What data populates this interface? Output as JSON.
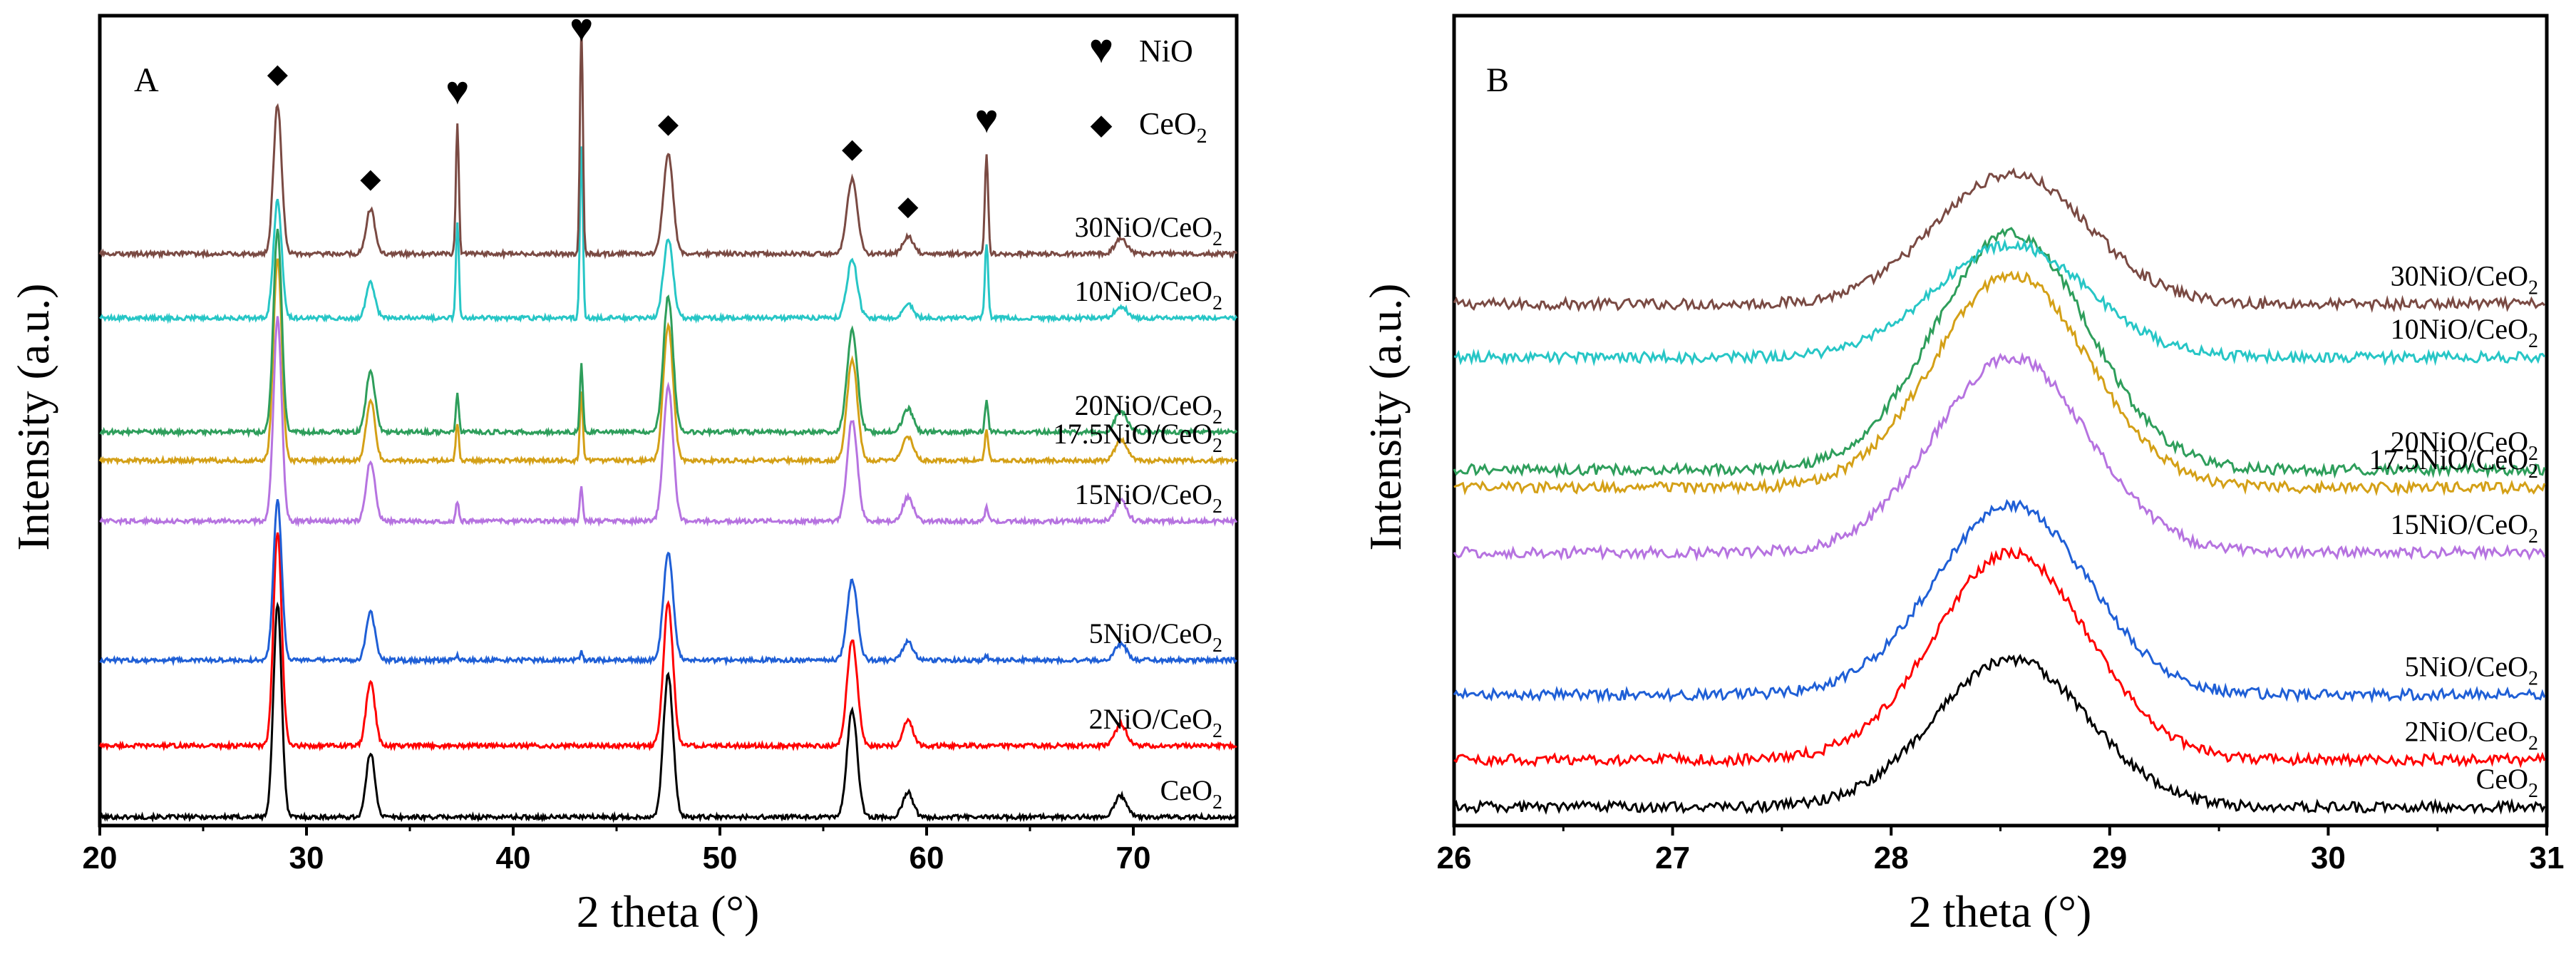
{
  "chart_data": [
    {
      "panel": "A",
      "type": "line",
      "xlabel": "2 theta (°)",
      "ylabel": "Intensity (a.u.)",
      "xlim": [
        20,
        75
      ],
      "xticks": [
        "20",
        "30",
        "40",
        "50",
        "60",
        "70"
      ],
      "legend": [
        {
          "marker": "heart",
          "glyph": "♥",
          "label": "NiO"
        },
        {
          "marker": "diamond",
          "glyph": "◆",
          "label": "CeO2"
        }
      ],
      "series": [
        {
          "name": "CeO2",
          "label_main": "CeO",
          "label_sub": "2",
          "color": "#000000",
          "baseline": 0.0,
          "nio_scale": 0.0,
          "ceo2_scale": 1.0
        },
        {
          "name": "2NiO/CeO2",
          "label_main": "2NiO/CeO",
          "label_sub": "2",
          "color": "#ff0000",
          "baseline": 1.0,
          "nio_scale": 0.0,
          "ceo2_scale": 1.0
        },
        {
          "name": "5NiO/CeO2",
          "label_main": "5NiO/CeO",
          "label_sub": "2",
          "color": "#1f5fd6",
          "baseline": 2.2,
          "nio_scale": 0.04,
          "ceo2_scale": 0.75
        },
        {
          "name": "15NiO/CeO2",
          "label_main": "15NiO/CeO",
          "label_sub": "2",
          "color": "#b673e0",
          "baseline": 4.15,
          "nio_scale": 0.15,
          "ceo2_scale": 0.95
        },
        {
          "name": "17.5NiO/CeO2",
          "label_main": "17.5NiO/CeO",
          "label_sub": "2",
          "color": "#d4a017",
          "baseline": 5.0,
          "nio_scale": 0.3,
          "ceo2_scale": 0.95
        },
        {
          "name": "20NiO/CeO2",
          "label_main": "20NiO/CeO",
          "label_sub": "2",
          "color": "#2e9e5b",
          "baseline": 5.4,
          "nio_scale": 0.3,
          "ceo2_scale": 0.95
        },
        {
          "name": "10NiO/CeO2",
          "label_main": "10NiO/CeO",
          "label_sub": "2",
          "color": "#27c6c6",
          "baseline": 7.0,
          "nio_scale": 0.75,
          "ceo2_scale": 0.55
        },
        {
          "name": "30NiO/CeO2",
          "label_main": "30NiO/CeO",
          "label_sub": "2",
          "color": "#7a4a43",
          "baseline": 7.9,
          "nio_scale": 1.0,
          "ceo2_scale": 0.7
        }
      ],
      "ceo2_peaks": [
        {
          "x": 28.6,
          "h": 3.0,
          "w": 0.28
        },
        {
          "x": 33.1,
          "h": 0.9,
          "w": 0.3
        },
        {
          "x": 47.5,
          "h": 2.0,
          "w": 0.33
        },
        {
          "x": 56.4,
          "h": 1.5,
          "w": 0.35
        },
        {
          "x": 59.1,
          "h": 0.35,
          "w": 0.35
        },
        {
          "x": 69.4,
          "h": 0.3,
          "w": 0.4
        }
      ],
      "nio_peaks": [
        {
          "x": 37.3,
          "h": 1.8,
          "w": 0.1
        },
        {
          "x": 43.3,
          "h": 3.2,
          "w": 0.1
        },
        {
          "x": 62.9,
          "h": 1.4,
          "w": 0.11
        }
      ],
      "markers": [
        {
          "type": "diamond",
          "glyph": "◆",
          "x": 28.6
        },
        {
          "type": "diamond",
          "glyph": "◆",
          "x": 33.1
        },
        {
          "type": "heart",
          "glyph": "♥",
          "x": 37.3
        },
        {
          "type": "heart",
          "glyph": "♥",
          "x": 43.3
        },
        {
          "type": "diamond",
          "glyph": "◆",
          "x": 47.5
        },
        {
          "type": "diamond",
          "glyph": "◆",
          "x": 56.4
        },
        {
          "type": "diamond",
          "glyph": "◆",
          "x": 59.1
        },
        {
          "type": "heart",
          "glyph": "♥",
          "x": 62.9
        }
      ]
    },
    {
      "panel": "B",
      "type": "line",
      "xlabel": "2 theta (°)",
      "ylabel": "Intensity (a.u.)",
      "xlim": [
        26,
        31
      ],
      "xticks": [
        "26",
        "27",
        "28",
        "29",
        "30",
        "31"
      ],
      "peak": {
        "center": 28.55,
        "sigma": 0.35
      },
      "series": [
        {
          "name": "CeO2",
          "label_main": "CeO",
          "label_sub": "2",
          "color": "#000000",
          "baseline": 0.0,
          "height": 2.5
        },
        {
          "name": "2NiO/CeO2",
          "label_main": "2NiO/CeO",
          "label_sub": "2",
          "color": "#ff0000",
          "baseline": 0.8,
          "height": 3.5
        },
        {
          "name": "5NiO/CeO2",
          "label_main": "5NiO/CeO",
          "label_sub": "2",
          "color": "#1f5fd6",
          "baseline": 1.9,
          "height": 3.2
        },
        {
          "name": "15NiO/CeO2",
          "label_main": "15NiO/CeO",
          "label_sub": "2",
          "color": "#b673e0",
          "baseline": 4.3,
          "height": 3.3
        },
        {
          "name": "17.5NiO/CeO2",
          "label_main": "17.5NiO/CeO",
          "label_sub": "2",
          "color": "#d4a017",
          "baseline": 5.4,
          "height": 3.6
        },
        {
          "name": "20NiO/CeO2",
          "label_main": "20NiO/CeO",
          "label_sub": "2",
          "color": "#2e9e5b",
          "baseline": 5.7,
          "height": 4.0
        },
        {
          "name": "10NiO/CeO2",
          "label_main": "10NiO/CeO",
          "label_sub": "2",
          "color": "#27c6c6",
          "baseline": 7.6,
          "height": 1.9
        },
        {
          "name": "30NiO/CeO2",
          "label_main": "30NiO/CeO",
          "label_sub": "2",
          "color": "#7a4a43",
          "baseline": 8.5,
          "height": 2.2
        }
      ]
    }
  ]
}
